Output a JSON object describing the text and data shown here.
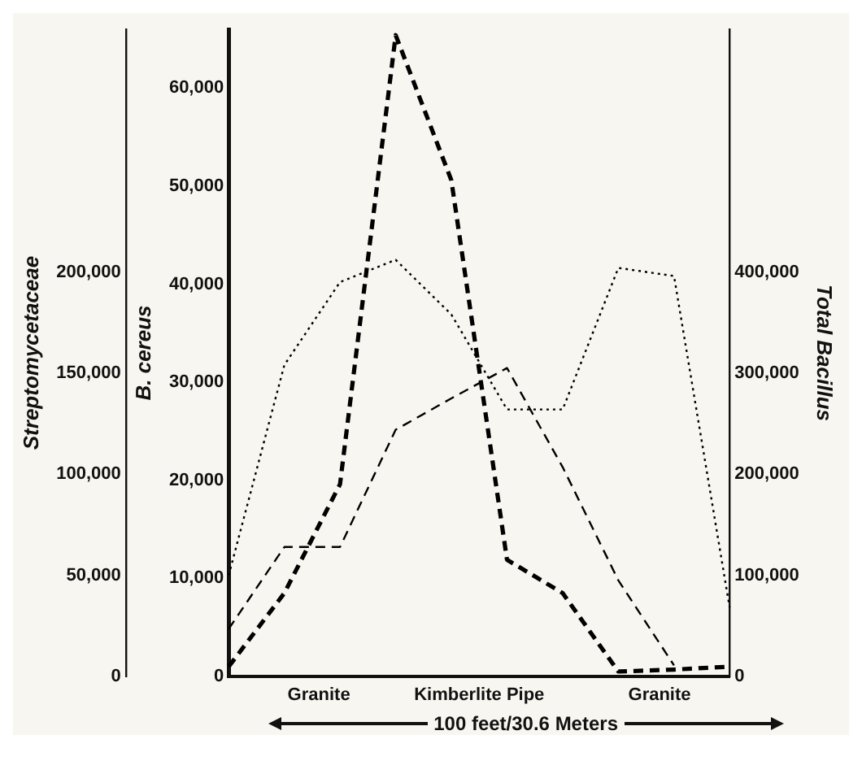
{
  "chart_data": {
    "type": "line",
    "categories": [
      null,
      null,
      null,
      null,
      null,
      null,
      null,
      null,
      null,
      null
    ],
    "xlabel": "100 feet/30.6 Meters",
    "ylabel": "B. cereus",
    "y2label": "Streptomycetaceae",
    "y3label": "Total Bacillus",
    "annotations": [
      "Granite",
      "Kimberlite Pipe",
      "Granite"
    ],
    "ylim": [
      0,
      66000
    ],
    "yticks": [
      0,
      {
        "value": 10000,
        "label": "10,000"
      },
      {
        "value": 20000,
        "label": "20,000"
      },
      {
        "value": 30000,
        "label": "30,000"
      },
      {
        "value": 40000,
        "label": "40,000"
      },
      {
        "value": 50000,
        "label": "50,000"
      },
      {
        "value": 60000,
        "label": "60,000"
      }
    ],
    "y2lim": [
      0,
      320000
    ],
    "y2ticks": [
      0,
      {
        "value": 50000,
        "label": "50,000"
      },
      {
        "value": 100000,
        "label": "100,000"
      },
      {
        "value": 150000,
        "label": "150,000"
      },
      {
        "value": 200000,
        "label": "200,000"
      }
    ],
    "y3lim": [
      0,
      640000
    ],
    "y3ticks": [
      0,
      {
        "value": 100000,
        "label": "100,000"
      },
      {
        "value": 200000,
        "label": "200,000"
      },
      {
        "value": 300000,
        "label": "300,000"
      },
      {
        "value": 400000,
        "label": "400,000"
      }
    ],
    "grid": false,
    "legend": false,
    "marker": "none",
    "series": [
      {
        "color": "#000000",
        "line_style": "dashed",
        "axis": "y",
        "values": [
          1000,
          8500,
          19600,
          65400,
          50600,
          11900,
          8500,
          500,
          700,
          1000
        ]
      },
      {
        "color": "#000000",
        "line_style": "dotted",
        "axis": "y2",
        "values": [
          50000,
          154000,
          195000,
          206000,
          179000,
          132000,
          132000,
          202000,
          198000,
          34000
        ]
      },
      {
        "color": "#000000",
        "line_style": "dashed",
        "axis": "y3",
        "values": [
          47000,
          128000,
          128000,
          244000,
          275000,
          305000,
          207000,
          95000,
          11000,
          null
        ]
      }
    ]
  }
}
